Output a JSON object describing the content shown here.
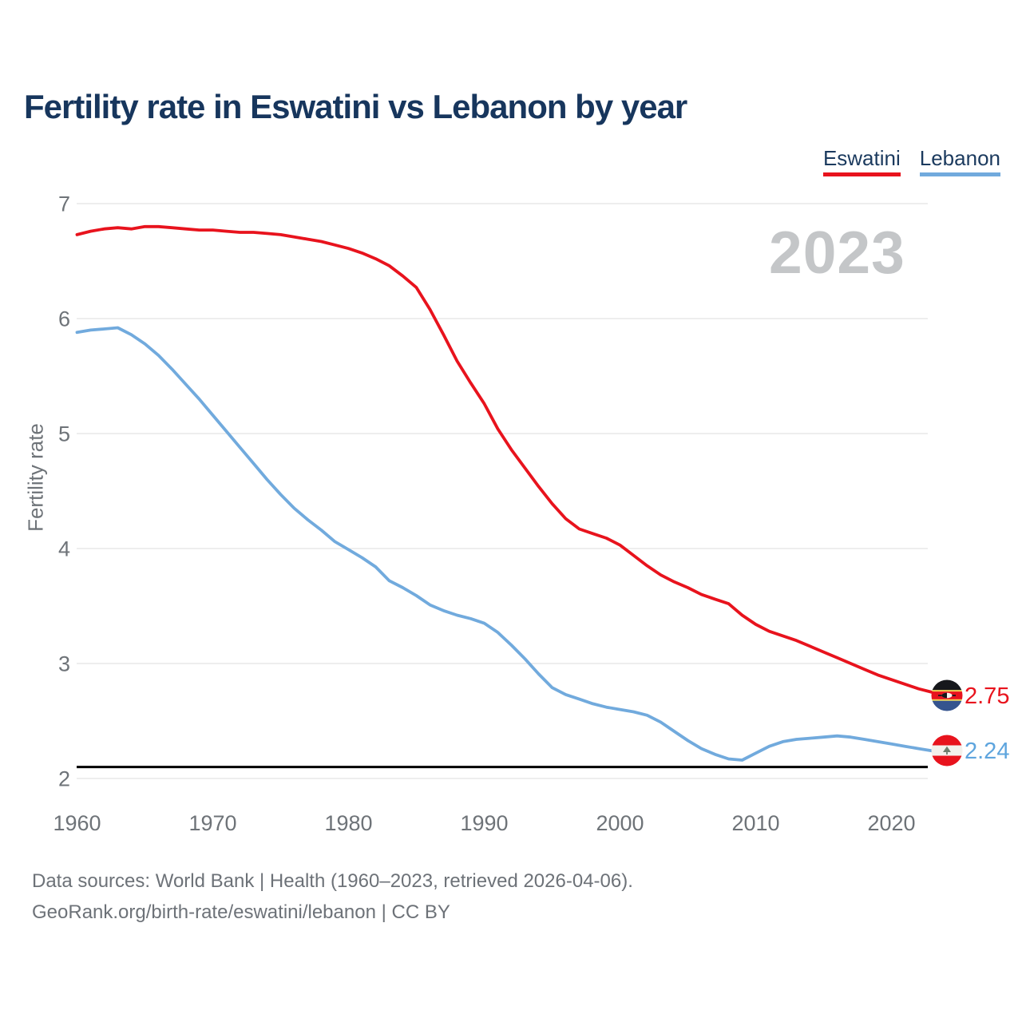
{
  "header": {
    "title": "Fertility rate in Eswatini vs Lebanon by year"
  },
  "legend": {
    "items": [
      {
        "label": "Eswatini",
        "color": "#e8131d"
      },
      {
        "label": "Lebanon",
        "color": "#71aadd"
      }
    ]
  },
  "watermark": "2023",
  "chart_data": {
    "type": "line",
    "title": "Fertility rate in Eswatini vs Lebanon by year",
    "xlabel": "",
    "ylabel": "Fertility rate",
    "x_start": 1960,
    "x_end": 2023,
    "xticks": [
      1960,
      1970,
      1980,
      1990,
      2000,
      2010,
      2020
    ],
    "yticks": [
      2,
      3,
      4,
      5,
      6,
      7
    ],
    "ylim": [
      2,
      7
    ],
    "grid": true,
    "legend_position": "top-right",
    "reference_line": {
      "value": 2.1,
      "color": "#000000"
    },
    "series": [
      {
        "name": "Eswatini",
        "color": "#e8131d",
        "end_label": "2.75",
        "values": [
          6.73,
          6.76,
          6.78,
          6.79,
          6.78,
          6.8,
          6.8,
          6.79,
          6.78,
          6.77,
          6.77,
          6.76,
          6.75,
          6.75,
          6.74,
          6.73,
          6.71,
          6.69,
          6.67,
          6.64,
          6.61,
          6.57,
          6.52,
          6.46,
          6.37,
          6.27,
          6.08,
          5.86,
          5.63,
          5.44,
          5.26,
          5.04,
          4.86,
          4.7,
          4.54,
          4.39,
          4.26,
          4.17,
          4.13,
          4.09,
          4.03,
          3.94,
          3.85,
          3.77,
          3.71,
          3.66,
          3.6,
          3.56,
          3.52,
          3.42,
          3.34,
          3.28,
          3.24,
          3.2,
          3.15,
          3.1,
          3.05,
          3.0,
          2.95,
          2.9,
          2.86,
          2.82,
          2.78,
          2.75
        ]
      },
      {
        "name": "Lebanon",
        "color": "#71aadd",
        "end_label": "2.24",
        "values": [
          5.88,
          5.9,
          5.91,
          5.92,
          5.86,
          5.78,
          5.68,
          5.56,
          5.43,
          5.3,
          5.16,
          5.02,
          4.88,
          4.74,
          4.6,
          4.47,
          4.35,
          4.25,
          4.16,
          4.06,
          3.99,
          3.92,
          3.84,
          3.72,
          3.66,
          3.59,
          3.51,
          3.46,
          3.42,
          3.39,
          3.35,
          3.27,
          3.16,
          3.04,
          2.91,
          2.79,
          2.73,
          2.69,
          2.65,
          2.62,
          2.6,
          2.58,
          2.55,
          2.49,
          2.41,
          2.33,
          2.26,
          2.21,
          2.17,
          2.16,
          2.22,
          2.28,
          2.32,
          2.34,
          2.35,
          2.36,
          2.37,
          2.36,
          2.34,
          2.32,
          2.3,
          2.28,
          2.26,
          2.24
        ]
      }
    ]
  },
  "footer": {
    "line1": "Data sources: World Bank | Health (1960–2023, retrieved 2026-04-06).",
    "line2": "GeoRank.org/birth-rate/eswatini/lebanon | CC BY"
  }
}
